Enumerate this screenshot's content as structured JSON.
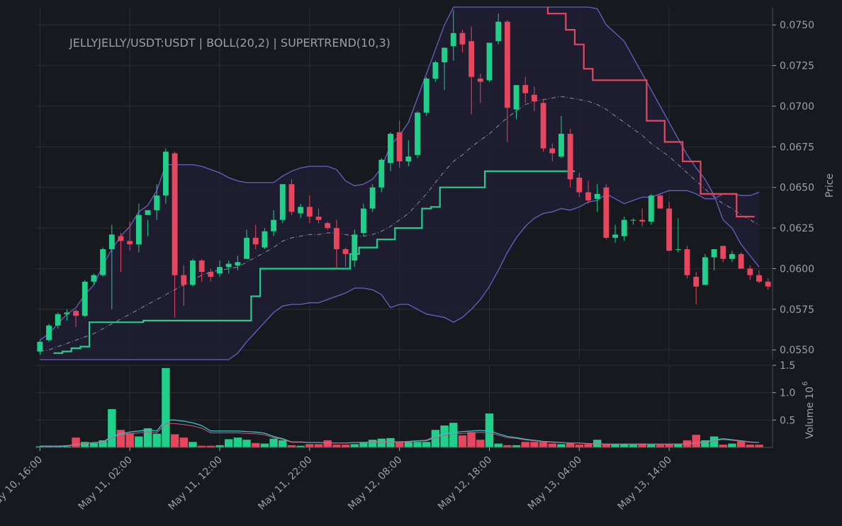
{
  "colors": {
    "background": "#16191e",
    "grid": "#2c3036",
    "text": "#9aa0a6",
    "up": "#1fcf8a",
    "down": "#e8465f",
    "band": "#6c5fc4",
    "band_fill": "#1f1f33",
    "basis": "#8d8fa0",
    "vol_ma_up": "#2bc8c8",
    "vol_ma_down": "#d15a7c"
  },
  "chart_data": {
    "type": "candlestick",
    "title": "JELLYJELLY/USDT:USDT | BOLL(20,2) | SUPERTREND(10,3)",
    "x_tick_labels": [
      "May 10, 16:00",
      "May 11, 02:00",
      "May 11, 12:00",
      "May 11, 22:00",
      "May 12, 08:00",
      "May 12, 18:00",
      "May 13, 04:00",
      "May 13, 14:00"
    ],
    "price_axis": {
      "label": "Price",
      "ticks": [
        "0.0550",
        "0.0575",
        "0.0600",
        "0.0625",
        "0.0650",
        "0.0675",
        "0.0700",
        "0.0725",
        "0.0750"
      ],
      "range": [
        0.0544,
        0.0761
      ]
    },
    "volume_axis": {
      "label": "Volume",
      "exponent_label": "10",
      "exponent": "6",
      "ticks": [
        "0.5",
        "1.0",
        "1.5"
      ],
      "range": [
        0,
        1.5
      ]
    },
    "candles_ohlc": [
      [
        0.0549,
        0.0556,
        0.0547,
        0.0555
      ],
      [
        0.0556,
        0.0566,
        0.0555,
        0.0565
      ],
      [
        0.0565,
        0.0573,
        0.0563,
        0.0572
      ],
      [
        0.0572,
        0.0575,
        0.0568,
        0.0573
      ],
      [
        0.0574,
        0.0575,
        0.0564,
        0.0571
      ],
      [
        0.0571,
        0.0593,
        0.057,
        0.0592
      ],
      [
        0.0592,
        0.0597,
        0.059,
        0.0596
      ],
      [
        0.0596,
        0.0613,
        0.0595,
        0.0612
      ],
      [
        0.0612,
        0.0627,
        0.0575,
        0.0621
      ],
      [
        0.062,
        0.0622,
        0.0598,
        0.0617
      ],
      [
        0.0617,
        0.0629,
        0.0611,
        0.0615
      ],
      [
        0.0615,
        0.064,
        0.061,
        0.0633
      ],
      [
        0.0633,
        0.063,
        0.062,
        0.0636
      ],
      [
        0.0636,
        0.0652,
        0.063,
        0.0645
      ],
      [
        0.0645,
        0.0674,
        0.064,
        0.0672
      ],
      [
        0.0671,
        0.0672,
        0.057,
        0.0596
      ],
      [
        0.0596,
        0.0602,
        0.0577,
        0.059
      ],
      [
        0.059,
        0.0606,
        0.0589,
        0.0605
      ],
      [
        0.0605,
        0.0606,
        0.0592,
        0.0598
      ],
      [
        0.0598,
        0.06,
        0.0592,
        0.0595
      ],
      [
        0.0597,
        0.0605,
        0.0595,
        0.0601
      ],
      [
        0.0601,
        0.0605,
        0.0597,
        0.0603
      ],
      [
        0.0602,
        0.0608,
        0.0599,
        0.0604
      ],
      [
        0.0606,
        0.0624,
        0.0606,
        0.0619
      ],
      [
        0.0619,
        0.0627,
        0.0612,
        0.0615
      ],
      [
        0.0613,
        0.0625,
        0.0612,
        0.0623
      ],
      [
        0.0623,
        0.0636,
        0.062,
        0.063
      ],
      [
        0.063,
        0.0651,
        0.0628,
        0.0652
      ],
      [
        0.0652,
        0.0655,
        0.0633,
        0.0635
      ],
      [
        0.0634,
        0.064,
        0.0631,
        0.0638
      ],
      [
        0.0638,
        0.0645,
        0.0628,
        0.0632
      ],
      [
        0.0632,
        0.0637,
        0.0628,
        0.063
      ],
      [
        0.0628,
        0.0629,
        0.0624,
        0.0625
      ],
      [
        0.0625,
        0.063,
        0.06,
        0.0612
      ],
      [
        0.0612,
        0.0613,
        0.0601,
        0.0609
      ],
      [
        0.0605,
        0.0624,
        0.0601,
        0.0621
      ],
      [
        0.0622,
        0.064,
        0.062,
        0.0637
      ],
      [
        0.0637,
        0.0652,
        0.0635,
        0.065
      ],
      [
        0.065,
        0.0668,
        0.0647,
        0.0667
      ],
      [
        0.0665,
        0.0684,
        0.066,
        0.0683
      ],
      [
        0.0684,
        0.0691,
        0.0662,
        0.0666
      ],
      [
        0.0666,
        0.0679,
        0.0663,
        0.0669
      ],
      [
        0.067,
        0.0697,
        0.0668,
        0.0696
      ],
      [
        0.0696,
        0.0718,
        0.0694,
        0.0717
      ],
      [
        0.0717,
        0.0728,
        0.0715,
        0.0727
      ],
      [
        0.0727,
        0.0735,
        0.071,
        0.0736
      ],
      [
        0.0737,
        0.0759,
        0.0728,
        0.0745
      ],
      [
        0.0745,
        0.0747,
        0.0733,
        0.0738
      ],
      [
        0.074,
        0.0749,
        0.0695,
        0.0718
      ],
      [
        0.0717,
        0.072,
        0.0702,
        0.0715
      ],
      [
        0.0716,
        0.0737,
        0.0715,
        0.0739
      ],
      [
        0.074,
        0.0757,
        0.0738,
        0.0752
      ],
      [
        0.0752,
        0.0753,
        0.0678,
        0.0699
      ],
      [
        0.0698,
        0.0712,
        0.0692,
        0.0713
      ],
      [
        0.0713,
        0.0718,
        0.0702,
        0.0708
      ],
      [
        0.0707,
        0.0712,
        0.0697,
        0.0703
      ],
      [
        0.0702,
        0.0704,
        0.0672,
        0.0674
      ],
      [
        0.0674,
        0.0677,
        0.0666,
        0.0671
      ],
      [
        0.0669,
        0.0694,
        0.0668,
        0.0683
      ],
      [
        0.0683,
        0.0686,
        0.065,
        0.0655
      ],
      [
        0.0656,
        0.0659,
        0.0644,
        0.0647
      ],
      [
        0.0647,
        0.0654,
        0.064,
        0.0642
      ],
      [
        0.0643,
        0.0652,
        0.0635,
        0.0646
      ],
      [
        0.065,
        0.0652,
        0.0618,
        0.0619
      ],
      [
        0.0619,
        0.0627,
        0.0616,
        0.0621
      ],
      [
        0.062,
        0.0632,
        0.0617,
        0.063
      ],
      [
        0.063,
        0.0631,
        0.0627,
        0.063
      ],
      [
        0.063,
        0.0637,
        0.0626,
        0.0629
      ],
      [
        0.0629,
        0.0646,
        0.0627,
        0.0645
      ],
      [
        0.0645,
        0.0646,
        0.0637,
        0.0637
      ],
      [
        0.0637,
        0.0641,
        0.0611,
        0.0611
      ],
      [
        0.0612,
        0.0631,
        0.061,
        0.0612
      ],
      [
        0.0612,
        0.0614,
        0.0594,
        0.0596
      ],
      [
        0.0595,
        0.0598,
        0.0578,
        0.0589
      ],
      [
        0.059,
        0.0609,
        0.059,
        0.0607
      ],
      [
        0.0607,
        0.0612,
        0.0599,
        0.0612
      ],
      [
        0.0614,
        0.0614,
        0.0604,
        0.0606
      ],
      [
        0.0606,
        0.0611,
        0.0604,
        0.0609
      ],
      [
        0.0609,
        0.061,
        0.0601,
        0.06
      ],
      [
        0.06,
        0.0602,
        0.0593,
        0.0596
      ],
      [
        0.0596,
        0.0599,
        0.0591,
        0.0592
      ],
      [
        0.0592,
        0.0594,
        0.0587,
        0.0589
      ]
    ],
    "volume_millions": [
      0.02,
      0.03,
      0.03,
      0.02,
      0.18,
      0.1,
      0.08,
      0.13,
      0.7,
      0.32,
      0.26,
      0.2,
      0.35,
      0.25,
      1.45,
      0.24,
      0.18,
      0.1,
      0.03,
      0.03,
      0.04,
      0.15,
      0.18,
      0.14,
      0.08,
      0.07,
      0.16,
      0.13,
      0.04,
      0.03,
      0.06,
      0.06,
      0.13,
      0.05,
      0.05,
      0.06,
      0.1,
      0.14,
      0.16,
      0.17,
      0.11,
      0.1,
      0.1,
      0.1,
      0.32,
      0.4,
      0.45,
      0.22,
      0.28,
      0.14,
      0.62,
      0.07,
      0.04,
      0.04,
      0.1,
      0.1,
      0.1,
      0.07,
      0.06,
      0.08,
      0.05,
      0.06,
      0.14,
      0.06,
      0.06,
      0.06,
      0.05,
      0.07,
      0.05,
      0.05,
      0.06,
      0.07,
      0.13,
      0.23,
      0.13,
      0.2,
      0.05,
      0.07,
      0.11,
      0.05,
      0.05
    ],
    "volume_ma_millions": [
      0.02,
      0.02,
      0.02,
      0.03,
      0.05,
      0.07,
      0.09,
      0.1,
      0.2,
      0.25,
      0.28,
      0.3,
      0.32,
      0.3,
      0.5,
      0.5,
      0.48,
      0.45,
      0.4,
      0.3,
      0.3,
      0.3,
      0.3,
      0.29,
      0.28,
      0.26,
      0.2,
      0.16,
      0.1,
      0.1,
      0.09,
      0.09,
      0.08,
      0.08,
      0.08,
      0.09,
      0.09,
      0.1,
      0.1,
      0.1,
      0.1,
      0.11,
      0.12,
      0.13,
      0.2,
      0.25,
      0.27,
      0.29,
      0.3,
      0.31,
      0.3,
      0.25,
      0.2,
      0.18,
      0.15,
      0.13,
      0.11,
      0.1,
      0.09,
      0.08,
      0.08,
      0.07,
      0.07,
      0.06,
      0.06,
      0.06,
      0.06,
      0.06,
      0.06,
      0.06,
      0.06,
      0.06,
      0.07,
      0.08,
      0.1,
      0.13,
      0.16,
      0.14,
      0.12,
      0.1,
      0.09
    ],
    "bollinger_upper": [
      0.0556,
      0.056,
      0.0566,
      0.0572,
      0.0576,
      0.0584,
      0.059,
      0.0602,
      0.0612,
      0.062,
      0.0626,
      0.0635,
      0.0639,
      0.0648,
      0.0664,
      0.0664,
      0.0664,
      0.0664,
      0.0663,
      0.0661,
      0.0659,
      0.0656,
      0.0654,
      0.0653,
      0.0653,
      0.0653,
      0.0653,
      0.0657,
      0.066,
      0.0662,
      0.0663,
      0.0663,
      0.0663,
      0.0661,
      0.0654,
      0.0651,
      0.0652,
      0.0655,
      0.0662,
      0.0676,
      0.0682,
      0.069,
      0.0705,
      0.072,
      0.0735,
      0.075,
      0.0765,
      0.077,
      0.0775,
      0.0777,
      0.0777,
      0.0777,
      0.0777,
      0.0777,
      0.0776,
      0.0775,
      0.0775,
      0.0775,
      0.0775,
      0.0774,
      0.077,
      0.0765,
      0.076,
      0.075,
      0.0745,
      0.074,
      0.073,
      0.072,
      0.071,
      0.07,
      0.069,
      0.068,
      0.067,
      0.0662,
      0.0655,
      0.0645,
      0.063,
      0.0625,
      0.0615,
      0.0608,
      0.0601
    ],
    "bollinger_basis": [
      0.0549,
      0.055,
      0.0552,
      0.0554,
      0.0556,
      0.0558,
      0.056,
      0.0563,
      0.0566,
      0.0569,
      0.0572,
      0.0575,
      0.0578,
      0.0581,
      0.0584,
      0.0587,
      0.059,
      0.0593,
      0.0596,
      0.0598,
      0.0599,
      0.06,
      0.0601,
      0.0604,
      0.0607,
      0.061,
      0.0613,
      0.0617,
      0.0619,
      0.062,
      0.0621,
      0.0621,
      0.0622,
      0.0622,
      0.0621,
      0.062,
      0.062,
      0.0621,
      0.0623,
      0.0626,
      0.063,
      0.0634,
      0.064,
      0.0646,
      0.0653,
      0.066,
      0.0666,
      0.067,
      0.0675,
      0.0679,
      0.0683,
      0.0688,
      0.0693,
      0.0697,
      0.0701,
      0.0703,
      0.0704,
      0.0705,
      0.0706,
      0.0705,
      0.0704,
      0.0703,
      0.0701,
      0.0698,
      0.0694,
      0.069,
      0.0686,
      0.0682,
      0.0677,
      0.0673,
      0.0669,
      0.0664,
      0.0659,
      0.0654,
      0.0649,
      0.0644,
      0.064,
      0.0637,
      0.0633,
      0.063,
      0.0627
    ],
    "bollinger_lower": [
      0.0542,
      0.054,
      0.0538,
      0.0536,
      0.0536,
      0.0532,
      0.053,
      0.0524,
      0.052,
      0.0518,
      0.0518,
      0.0515,
      0.0517,
      0.0514,
      0.0504,
      0.051,
      0.0516,
      0.0522,
      0.0529,
      0.0535,
      0.0539,
      0.0544,
      0.0548,
      0.0555,
      0.0561,
      0.0567,
      0.0573,
      0.0577,
      0.0578,
      0.0578,
      0.0579,
      0.0579,
      0.0581,
      0.0583,
      0.0585,
      0.0588,
      0.0588,
      0.0587,
      0.0584,
      0.0576,
      0.0578,
      0.0578,
      0.0575,
      0.0572,
      0.0571,
      0.057,
      0.0567,
      0.057,
      0.0575,
      0.0581,
      0.0589,
      0.0599,
      0.061,
      0.0619,
      0.0626,
      0.0631,
      0.0634,
      0.0635,
      0.0637,
      0.0636,
      0.0638,
      0.0641,
      0.0642,
      0.0646,
      0.0643,
      0.064,
      0.0642,
      0.0644,
      0.0644,
      0.0646,
      0.0648,
      0.0648,
      0.0648,
      0.0646,
      0.0643,
      0.0643,
      0.0646,
      0.0646,
      0.0645,
      0.0645,
      0.0647
    ],
    "supertrend_up_x": [
      2,
      3,
      3,
      4,
      4,
      5,
      5,
      6,
      6,
      12,
      12,
      23,
      23,
      24,
      24,
      25,
      25,
      26,
      26,
      35,
      35,
      36,
      36,
      38,
      38,
      40,
      40,
      43,
      43,
      44,
      44,
      45,
      45,
      50,
      50,
      51,
      51,
      52,
      52,
      53,
      53,
      55,
      55,
      56,
      56,
      57,
      57,
      60
    ],
    "supertrend_up_y": [
      0.0548,
      0.0548,
      0.0549,
      0.0549,
      0.0551,
      0.0551,
      0.0552,
      0.0552,
      0.0567,
      0.0567,
      0.0568,
      0.0568,
      0.0568,
      0.0568,
      0.0583,
      0.0583,
      0.06,
      0.06,
      0.06,
      0.06,
      0.0609,
      0.0609,
      0.0613,
      0.0613,
      0.0618,
      0.0618,
      0.0625,
      0.0625,
      0.0637,
      0.0637,
      0.0638,
      0.0638,
      0.065,
      0.065,
      0.066,
      0.066,
      0.066,
      0.066,
      0.066,
      0.066,
      0.066,
      0.066,
      0.066,
      0.066,
      0.066,
      0.066,
      0.066,
      0.066
    ],
    "supertrend_down_x": [
      57,
      57,
      59,
      59,
      60,
      60,
      61,
      61,
      62,
      62,
      68,
      68,
      70,
      70,
      72,
      72,
      74,
      74,
      76,
      76,
      78,
      78,
      80
    ],
    "supertrend_down_y": [
      0.0761,
      0.0757,
      0.0757,
      0.0747,
      0.0747,
      0.0738,
      0.0738,
      0.0723,
      0.0723,
      0.0716,
      0.0716,
      0.0691,
      0.0691,
      0.0678,
      0.0678,
      0.0666,
      0.0666,
      0.0646,
      0.0646,
      0.0646,
      0.0646,
      0.0632,
      0.0632
    ]
  }
}
